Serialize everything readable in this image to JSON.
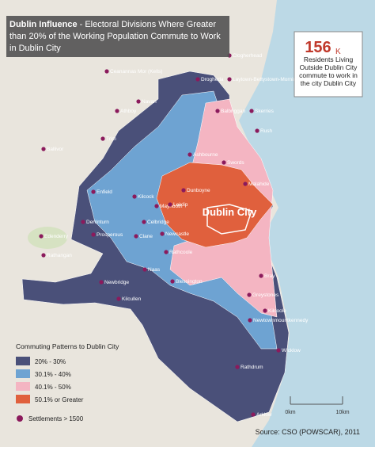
{
  "header": {
    "title": "Dublin Influence",
    "subtitle": "- Electoral Divisions Where Greater than 20% of the Working Population Commute to Work in Dublin City"
  },
  "stat": {
    "number": 156,
    "suffix": "K",
    "text": "Residents Living Outside Dublin City commute to work in the city Dublin City"
  },
  "city_label": "Dublin City",
  "towns": [
    "Clogherhead",
    "Ceanannas Mor (Kells)",
    "Drogheda",
    "Laytown-Bettystown-Mornington",
    "Navan",
    "Athboy",
    "Ballivor",
    "Trim",
    "Balbriggan",
    "Skerries",
    "Rush",
    "Ashbourne",
    "Swords",
    "Malahide",
    "Enfield",
    "Kilcock",
    "Dunboyne",
    "Maynooth",
    "Leixlip",
    "Celbridge",
    "Newcastle",
    "Rathcoole",
    "Derrinturn",
    "Edenderry",
    "Prosperous",
    "Clane",
    "Rathangan",
    "Naas",
    "Newbridge",
    "Kilcullen",
    "Blessington",
    "Bray",
    "Greystones",
    "Kilcoole",
    "Newtownmountkennedy",
    "Wicklow",
    "Rathdrum",
    "Arklow"
  ],
  "legend": {
    "title": "Commuting Patterns to Dublin City",
    "items": [
      "20% - 30%",
      "30.1% - 40%",
      "40.1% - 50%",
      "50.1% or Greater"
    ],
    "settlements": "Settlements > 1500"
  },
  "scale": [
    "0km",
    "10km"
  ],
  "source": "Source: CSO (POWSCAR), 2011"
}
